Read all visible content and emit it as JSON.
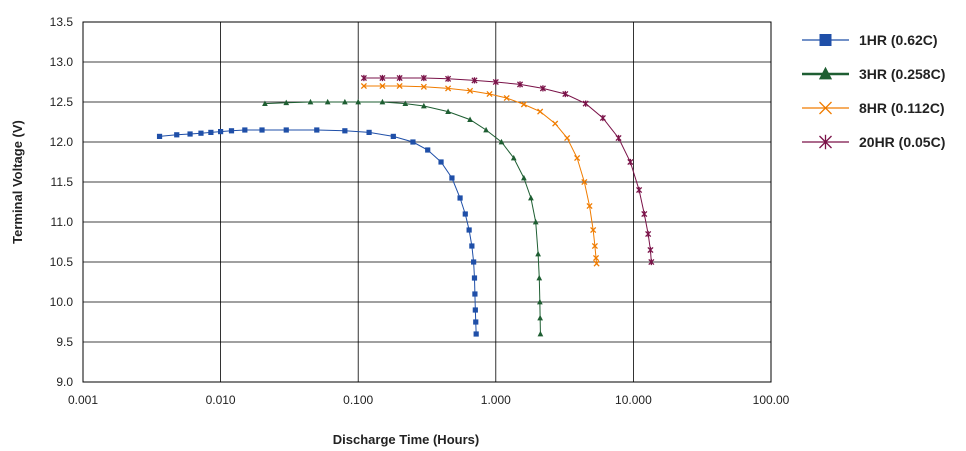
{
  "chart_data": {
    "type": "scatter",
    "xlabel": "Discharge Time (Hours)",
    "ylabel": "Terminal Voltage (V)",
    "x_scale": "log",
    "xlim": [
      0.001,
      100
    ],
    "ylim": [
      9.0,
      13.5
    ],
    "x_ticks": [
      "0.001",
      "0.010",
      "0.100",
      "1.000",
      "10.000",
      "100.00"
    ],
    "y_ticks": [
      "9.0",
      "9.5",
      "10.0",
      "10.5",
      "11.0",
      "11.5",
      "12.0",
      "12.5",
      "13.0",
      "13.5"
    ],
    "grid": true,
    "legend_position": "right",
    "series": [
      {
        "name": "1HR (0.62C)",
        "color": "#1f4fa8",
        "marker": "square",
        "x": [
          0.0036,
          0.0048,
          0.006,
          0.0072,
          0.0085,
          0.01,
          0.012,
          0.015,
          0.02,
          0.03,
          0.05,
          0.08,
          0.12,
          0.18,
          0.25,
          0.32,
          0.4,
          0.48,
          0.55,
          0.6,
          0.64,
          0.67,
          0.69,
          0.7,
          0.705,
          0.71,
          0.715,
          0.72
        ],
        "y": [
          12.07,
          12.09,
          12.1,
          12.11,
          12.12,
          12.13,
          12.14,
          12.15,
          12.15,
          12.15,
          12.15,
          12.14,
          12.12,
          12.07,
          12.0,
          11.9,
          11.75,
          11.55,
          11.3,
          11.1,
          10.9,
          10.7,
          10.5,
          10.3,
          10.1,
          9.9,
          9.75,
          9.6
        ]
      },
      {
        "name": "3HR (0.258C)",
        "color": "#1e5e32",
        "marker": "triangle",
        "x": [
          0.021,
          0.03,
          0.045,
          0.06,
          0.08,
          0.1,
          0.15,
          0.22,
          0.3,
          0.45,
          0.65,
          0.85,
          1.1,
          1.35,
          1.6,
          1.8,
          1.95,
          2.03,
          2.07,
          2.09,
          2.1,
          2.11
        ],
        "y": [
          12.48,
          12.49,
          12.5,
          12.5,
          12.5,
          12.5,
          12.5,
          12.48,
          12.45,
          12.38,
          12.28,
          12.15,
          12.0,
          11.8,
          11.55,
          11.3,
          11.0,
          10.6,
          10.3,
          10.0,
          9.8,
          9.6
        ]
      },
      {
        "name": "8HR (0.112C)",
        "color": "#f07c00",
        "marker": "x",
        "x": [
          0.11,
          0.15,
          0.2,
          0.3,
          0.45,
          0.65,
          0.9,
          1.2,
          1.6,
          2.1,
          2.7,
          3.3,
          3.9,
          4.4,
          4.8,
          5.1,
          5.25,
          5.35,
          5.4
        ],
        "y": [
          12.7,
          12.7,
          12.7,
          12.69,
          12.67,
          12.64,
          12.6,
          12.55,
          12.47,
          12.38,
          12.23,
          12.05,
          11.8,
          11.5,
          11.2,
          10.9,
          10.7,
          10.55,
          10.48
        ]
      },
      {
        "name": "20HR (0.05C)",
        "color": "#7a1248",
        "marker": "star",
        "x": [
          0.11,
          0.15,
          0.2,
          0.3,
          0.45,
          0.7,
          1.0,
          1.5,
          2.2,
          3.2,
          4.5,
          6.0,
          7.8,
          9.5,
          11.0,
          12.0,
          12.8,
          13.3,
          13.5
        ],
        "y": [
          12.8,
          12.8,
          12.8,
          12.8,
          12.79,
          12.77,
          12.75,
          12.72,
          12.67,
          12.6,
          12.48,
          12.3,
          12.05,
          11.75,
          11.4,
          11.1,
          10.85,
          10.65,
          10.5
        ]
      }
    ]
  }
}
